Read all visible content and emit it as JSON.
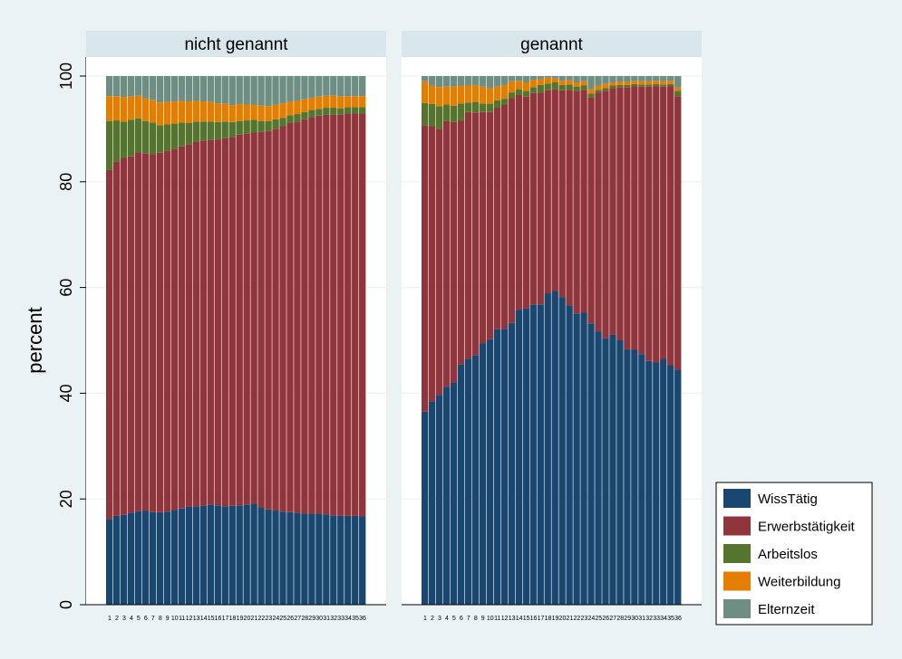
{
  "chart_data": {
    "type": "bar",
    "stacked": true,
    "percent": true,
    "ylabel": "percent",
    "ylim": [
      0,
      100
    ],
    "yticks": [
      0,
      20,
      40,
      60,
      80,
      100
    ],
    "grid": true,
    "legend_position": "bottom-right",
    "x": [
      1,
      2,
      3,
      4,
      5,
      6,
      7,
      8,
      9,
      10,
      11,
      12,
      13,
      14,
      15,
      16,
      17,
      18,
      19,
      20,
      21,
      22,
      23,
      24,
      25,
      26,
      27,
      28,
      29,
      30,
      31,
      32,
      33,
      34,
      35,
      36
    ],
    "series_names": [
      "WissTätig",
      "Erwerbstätigkeit",
      "Arbeitslos",
      "Weiterbildung",
      "Elternzeit"
    ],
    "colors": {
      "WissTätig": "#1a476f",
      "Erwerbstätigkeit": "#90353b",
      "Arbeitslos": "#55752f",
      "Weiterbildung": "#e37e00",
      "Elternzeit": "#6e8e84"
    },
    "panels": [
      {
        "title": "nicht genannt",
        "series": [
          {
            "name": "WissTätig",
            "values": [
              16.2,
              16.8,
              17.0,
              17.4,
              17.7,
              17.8,
              17.5,
              17.5,
              17.6,
              17.9,
              18.2,
              18.5,
              18.6,
              18.7,
              18.9,
              18.8,
              18.6,
              18.7,
              18.8,
              18.9,
              19.1,
              18.4,
              18.0,
              17.8,
              17.6,
              17.5,
              17.4,
              17.2,
              17.2,
              17.2,
              17.1,
              16.9,
              16.8,
              16.8,
              16.8,
              16.7
            ]
          },
          {
            "name": "Erwerbstätigkeit",
            "values": [
              66.0,
              67.0,
              67.5,
              67.4,
              67.9,
              67.6,
              67.6,
              68.0,
              68.3,
              68.3,
              68.5,
              68.6,
              69.0,
              69.1,
              69.0,
              69.2,
              69.6,
              69.8,
              70.1,
              70.2,
              70.2,
              71.0,
              71.6,
              72.2,
              72.9,
              73.6,
              74.0,
              74.6,
              75.0,
              75.3,
              75.6,
              75.8,
              75.9,
              76.1,
              76.1,
              76.2
            ]
          },
          {
            "name": "Arbeitslos",
            "values": [
              9.3,
              7.8,
              6.9,
              6.9,
              6.4,
              6.1,
              6.1,
              5.2,
              5.0,
              4.8,
              4.5,
              4.0,
              3.8,
              3.6,
              3.5,
              3.3,
              3.2,
              2.8,
              2.6,
              2.5,
              2.4,
              2.1,
              1.9,
              1.8,
              1.6,
              1.5,
              1.4,
              1.4,
              1.4,
              1.3,
              1.3,
              1.3,
              1.2,
              1.2,
              1.2,
              1.2
            ]
          },
          {
            "name": "Weiterbildung",
            "values": [
              4.7,
              4.6,
              4.6,
              4.4,
              4.3,
              4.3,
              4.3,
              4.3,
              4.2,
              4.2,
              4.1,
              4.1,
              3.9,
              3.8,
              3.7,
              3.5,
              3.4,
              3.2,
              3.2,
              3.0,
              2.9,
              2.9,
              2.8,
              2.8,
              2.7,
              2.6,
              2.5,
              2.4,
              2.3,
              2.3,
              2.3,
              2.3,
              2.2,
              2.1,
              2.1,
              2.1
            ]
          },
          {
            "name": "Elternzeit",
            "values": [
              3.8,
              3.8,
              4.0,
              3.9,
              3.7,
              4.2,
              4.5,
              5.0,
              4.9,
              4.8,
              4.7,
              4.8,
              4.7,
              4.8,
              4.9,
              5.2,
              5.2,
              5.5,
              5.3,
              5.4,
              5.4,
              5.6,
              5.7,
              5.4,
              5.2,
              4.8,
              4.7,
              4.4,
              4.1,
              3.9,
              3.7,
              3.7,
              3.9,
              3.8,
              3.8,
              3.8
            ]
          }
        ]
      },
      {
        "title": "genannt",
        "series": [
          {
            "name": "WissTätig",
            "values": [
              36.5,
              38.5,
              39.7,
              41.2,
              42.1,
              45.5,
              46.5,
              47.2,
              49.4,
              50.2,
              52.1,
              52.2,
              53.3,
              55.8,
              56.0,
              56.8,
              56.8,
              58.9,
              59.4,
              58.2,
              56.6,
              55.1,
              55.3,
              53.2,
              51.7,
              50.4,
              51.1,
              50.0,
              48.3,
              48.2,
              47.4,
              46.1,
              45.8,
              46.5,
              45.3,
              44.5
            ]
          },
          {
            "name": "Erwerbstätigkeit",
            "values": [
              54.2,
              52.0,
              50.3,
              50.3,
              49.2,
              46.1,
              46.7,
              45.9,
              43.8,
              43.0,
              41.9,
              42.4,
              42.5,
              40.6,
              40.1,
              40.0,
              40.1,
              38.4,
              38.1,
              39.1,
              40.8,
              42.1,
              42.1,
              42.7,
              45.2,
              46.8,
              46.6,
              47.9,
              49.6,
              49.9,
              50.6,
              51.9,
              52.3,
              51.5,
              52.8,
              51.7
            ]
          },
          {
            "name": "Arbeitslos",
            "values": [
              4.2,
              4.2,
              4.3,
              3.1,
              3.1,
              3.2,
              1.8,
              2.0,
              1.6,
              1.6,
              1.4,
              1.1,
              1.1,
              1.1,
              1.1,
              1.1,
              1.4,
              1.3,
              1.3,
              1.0,
              1.0,
              0.8,
              0.8,
              0.8,
              0.5,
              0.5,
              0.5,
              0.4,
              0.4,
              0.4,
              0.4,
              0.4,
              0.4,
              0.4,
              0.4,
              1.0
            ]
          },
          {
            "name": "Weiterbildung",
            "values": [
              4.1,
              3.5,
              3.6,
              3.4,
              3.6,
              3.4,
              3.2,
              3.2,
              3.2,
              2.9,
              2.6,
              2.6,
              2.1,
              1.6,
              1.6,
              1.4,
              1.1,
              1.1,
              0.8,
              0.8,
              0.8,
              0.8,
              0.8,
              0.8,
              0.8,
              0.8,
              0.6,
              0.6,
              0.6,
              0.6,
              0.6,
              0.6,
              0.6,
              0.6,
              0.6,
              0.6
            ]
          },
          {
            "name": "Elternzeit",
            "values": [
              1.0,
              1.8,
              2.1,
              2.0,
              2.0,
              1.8,
              1.8,
              1.7,
              2.0,
              2.3,
              2.0,
              1.7,
              1.0,
              0.9,
              1.2,
              0.7,
              0.6,
              0.3,
              0.4,
              0.9,
              0.8,
              1.2,
              1.0,
              2.5,
              1.8,
              1.5,
              1.2,
              1.1,
              1.1,
              0.9,
              1.0,
              1.0,
              0.9,
              1.0,
              0.9,
              2.2
            ]
          }
        ]
      }
    ]
  }
}
